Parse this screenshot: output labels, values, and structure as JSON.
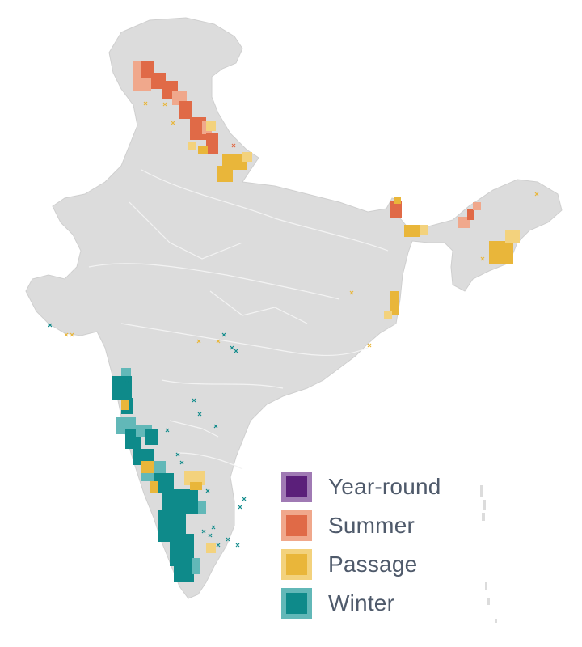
{
  "map": {
    "region": "India",
    "layers": [
      "Year-round",
      "Summer",
      "Passage",
      "Winter"
    ],
    "colors": {
      "land": "#dcdcdc",
      "land_edge": "#c9c9c9",
      "rivers": "#f4f4f4",
      "year_round": "#5b1f7a",
      "year_round_edge": "#a07ab4",
      "summer": "#e06a47",
      "summer_light": "#f0a88c",
      "passage": "#e9b63a",
      "passage_light": "#f3d27d",
      "winter": "#0e8a8a",
      "winter_light": "#62b8b8"
    }
  },
  "legend": {
    "items": [
      {
        "label": "Year-round",
        "key": "year_round",
        "fill": "#5b1f7a",
        "edge": "#a07ab4"
      },
      {
        "label": "Summer",
        "key": "summer",
        "fill": "#e06a47",
        "edge": "#f0a88c"
      },
      {
        "label": "Passage",
        "key": "passage",
        "fill": "#e9b63a",
        "edge": "#f3d27d"
      },
      {
        "label": "Winter",
        "key": "winter",
        "fill": "#0e8a8a",
        "edge": "#62b8b8"
      }
    ]
  }
}
